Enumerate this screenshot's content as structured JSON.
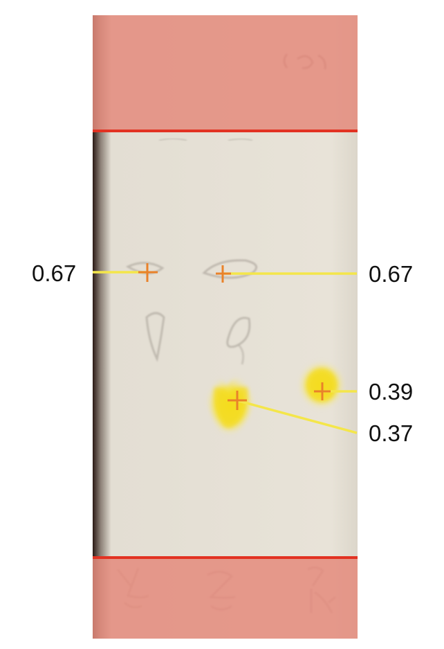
{
  "colors": {
    "background": "#ffffff",
    "plate": "#e7e2d7",
    "plate_edge_dark": "#2b1a15",
    "overlay_band": "#e48b7d",
    "boundary_line": "#e23222",
    "leader_line": "#f4e64a",
    "marker": "#e9822a",
    "yellow_spot": "#f3df3a",
    "pencil_outline": "#b8b2a8",
    "label_text": "#111111"
  },
  "overlay": {
    "top_band": "solvent-front-overlay",
    "bottom_band": "origin-overlay"
  },
  "rf_values": [
    {
      "id": "lane1-spot",
      "value": "0.67"
    },
    {
      "id": "lane2-upper-spot",
      "value": "0.67"
    },
    {
      "id": "lane3-spot",
      "value": "0.39"
    },
    {
      "id": "lane2-lower-spot",
      "value": "0.37"
    }
  ]
}
